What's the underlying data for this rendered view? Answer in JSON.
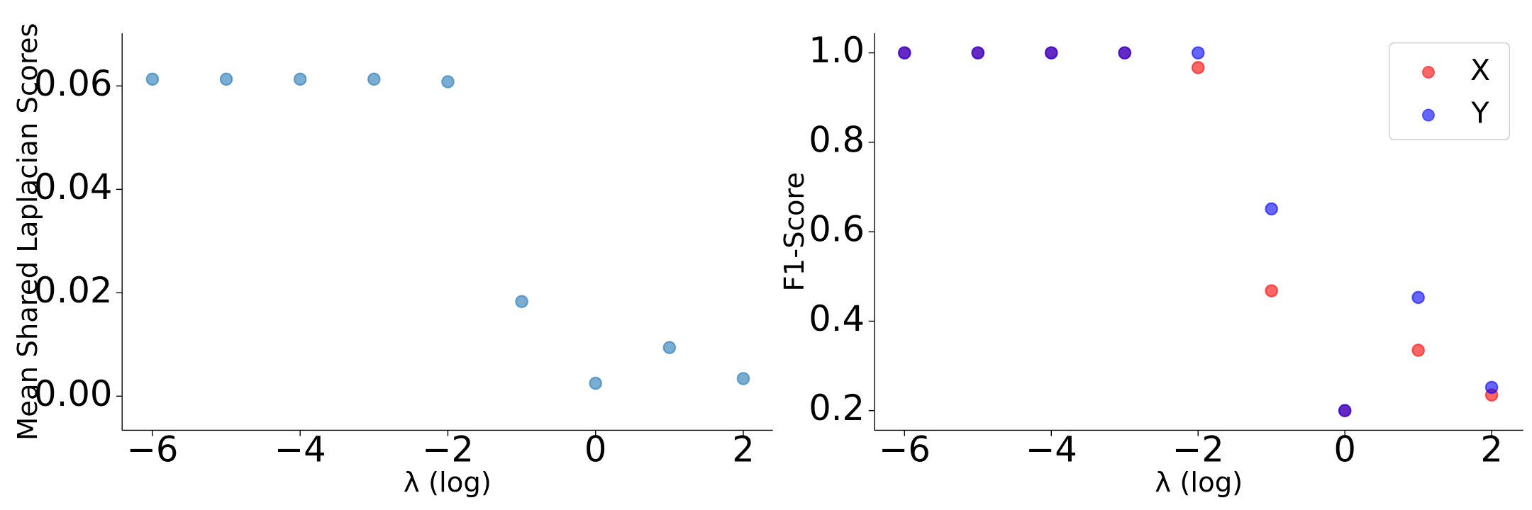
{
  "chart_data": [
    {
      "type": "scatter",
      "x_label": "λ (log)",
      "y_label": "Mean Shared Laplacian Scores",
      "x": [
        -6,
        -5,
        -4,
        -3,
        -2,
        -1,
        0,
        1,
        2
      ],
      "series": [
        {
          "color": "#1f77b4",
          "values": [
            0.0613,
            0.0613,
            0.0613,
            0.0613,
            0.0608,
            0.0183,
            0.0025,
            0.0094,
            0.0034
          ]
        }
      ],
      "xlim": [
        -6.41,
        2.4
      ],
      "ylim": [
        -0.0066,
        0.0702
      ],
      "xticks": [
        {
          "value": -6,
          "label": "−6"
        },
        {
          "value": -4,
          "label": "−4"
        },
        {
          "value": -2,
          "label": "−2"
        },
        0,
        2
      ],
      "yticks": [
        {
          "value": 0,
          "label": "0.00"
        },
        {
          "value": 0.02,
          "label": "0.02"
        },
        {
          "value": 0.04,
          "label": "0.04"
        },
        {
          "value": 0.06,
          "label": "0.06"
        }
      ]
    },
    {
      "type": "scatter",
      "x_label": "λ (log)",
      "y_label": "F1-Score",
      "x": [
        -6,
        -5,
        -4,
        -3,
        -2,
        -1,
        0,
        1,
        2
      ],
      "series": [
        {
          "name": "X",
          "color": "#ff0000",
          "values": [
            1.0,
            1.0,
            1.0,
            1.0,
            0.967,
            0.468,
            0.2,
            0.335,
            0.235
          ]
        },
        {
          "name": "Y",
          "color": "#0000ff",
          "values": [
            1.0,
            1.0,
            1.0,
            1.0,
            1.0,
            0.651,
            0.2,
            0.453,
            0.252
          ]
        }
      ],
      "xlim": [
        -6.41,
        2.43
      ],
      "ylim": [
        0.156,
        1.044
      ],
      "xticks": [
        {
          "value": -6,
          "label": "−6"
        },
        {
          "value": -4,
          "label": "−4"
        },
        {
          "value": -2,
          "label": "−2"
        },
        0,
        2
      ],
      "yticks": [
        0.2,
        0.4,
        0.6,
        0.8,
        {
          "value": 1.0,
          "label": "1.0"
        }
      ],
      "legend": "upper right"
    }
  ]
}
